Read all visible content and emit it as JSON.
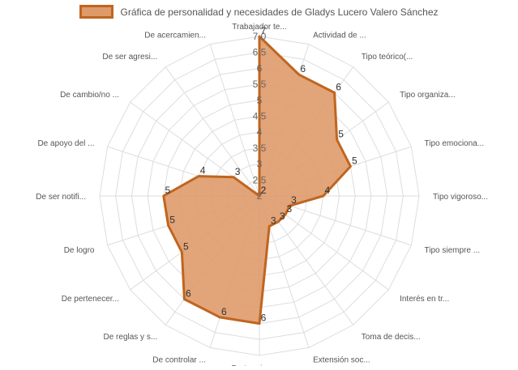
{
  "chart_data": {
    "type": "radar",
    "title": "",
    "series": [
      {
        "name": "Gráfica de personalidad y necesidades de Gladys Lucero Valero Sánchez",
        "values": [
          7,
          6,
          6,
          5,
          5,
          4,
          3,
          3,
          3,
          3,
          6,
          6,
          6,
          5,
          5,
          5,
          4,
          3,
          2,
          2
        ]
      }
    ],
    "categories": [
      "Trabajador te...",
      "Actividad de ...",
      "Tipo teórico(...",
      "Tipo organiza...",
      "Tipo emociona...",
      "Tipo vigoroso...",
      "Tipo siempre ...",
      "Interés en tr...",
      "Toma de decis...",
      "Extensión soc...",
      "De terminar u...",
      "De controlar ...",
      "De reglas y s...",
      "De pertenecer...",
      "De logro",
      "De ser notifi...",
      "De apoyo del ...",
      "De cambio/no ...",
      "De ser agresi...",
      "De acercamien..."
    ],
    "rlim": [
      2,
      7
    ],
    "ticks": [
      "2",
      "2.5",
      "3",
      "3.5",
      "4",
      "4.5",
      "5",
      "5.5",
      "6",
      "6.5",
      "7.0"
    ],
    "grid": true,
    "legend_position": "top",
    "colors": {
      "fill": "#df9a6a",
      "stroke": "#c0651f",
      "grid": "#dddddd"
    }
  }
}
